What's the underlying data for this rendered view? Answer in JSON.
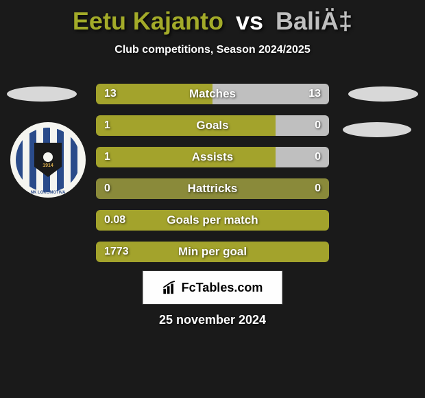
{
  "title": {
    "player1": "Eetu Kajanto",
    "vs": "vs",
    "player2": "BaliÄ‡",
    "color1": "#a3ab29",
    "color_vs": "#ffffff",
    "color2": "#bfbfbf"
  },
  "subtitle": "Club competitions, Season 2024/2025",
  "colors": {
    "player1_bar": "#a3a32c",
    "player2_bar": "#bfbfbf",
    "neutral_bar": "#8a8a3a",
    "background": "#1a1a1a"
  },
  "logo": {
    "year": "1914",
    "club_text": "NK LOKOMOTIVA"
  },
  "stats": [
    {
      "label": "Matches",
      "left_value": "13",
      "right_value": "13",
      "left_pct": 50,
      "right_pct": 50,
      "left_color": "#a3a32c",
      "right_color": "#bfbfbf"
    },
    {
      "label": "Goals",
      "left_value": "1",
      "right_value": "0",
      "left_pct": 77,
      "right_pct": 23,
      "left_color": "#a3a32c",
      "right_color": "#bfbfbf"
    },
    {
      "label": "Assists",
      "left_value": "1",
      "right_value": "0",
      "left_pct": 77,
      "right_pct": 23,
      "left_color": "#a3a32c",
      "right_color": "#bfbfbf"
    },
    {
      "label": "Hattricks",
      "left_value": "0",
      "right_value": "0",
      "left_pct": 100,
      "right_pct": 0,
      "left_color": "#8a8a3a",
      "right_color": "#bfbfbf"
    },
    {
      "label": "Goals per match",
      "left_value": "0.08",
      "right_value": "",
      "left_pct": 100,
      "right_pct": 0,
      "left_color": "#a3a32c",
      "right_color": "#bfbfbf"
    },
    {
      "label": "Min per goal",
      "left_value": "1773",
      "right_value": "",
      "left_pct": 100,
      "right_pct": 0,
      "left_color": "#a3a32c",
      "right_color": "#bfbfbf"
    }
  ],
  "footer": {
    "brand": "FcTables.com"
  },
  "date": "25 november 2024"
}
